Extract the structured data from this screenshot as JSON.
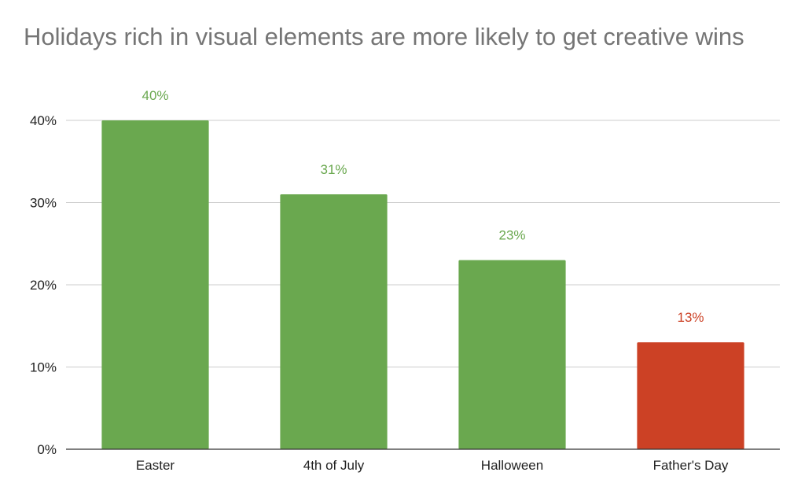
{
  "chart_data": {
    "type": "bar",
    "title": "Holidays rich in visual elements are more likely to get creative wins",
    "xlabel": "",
    "ylabel": "",
    "categories": [
      "Easter",
      "4th of July",
      "Halloween",
      "Father's Day"
    ],
    "values": [
      40,
      31,
      23,
      13
    ],
    "data_labels": [
      "40%",
      "31%",
      "23%",
      "13%"
    ],
    "bar_colors": [
      "#6aa84f",
      "#6aa84f",
      "#6aa84f",
      "#cc4125"
    ],
    "ylim": [
      0,
      40
    ],
    "y_ticks": [
      0,
      10,
      20,
      30,
      40
    ],
    "y_tick_labels": [
      "0%",
      "10%",
      "20%",
      "30%",
      "40%"
    ],
    "grid": true,
    "legend": "none"
  }
}
